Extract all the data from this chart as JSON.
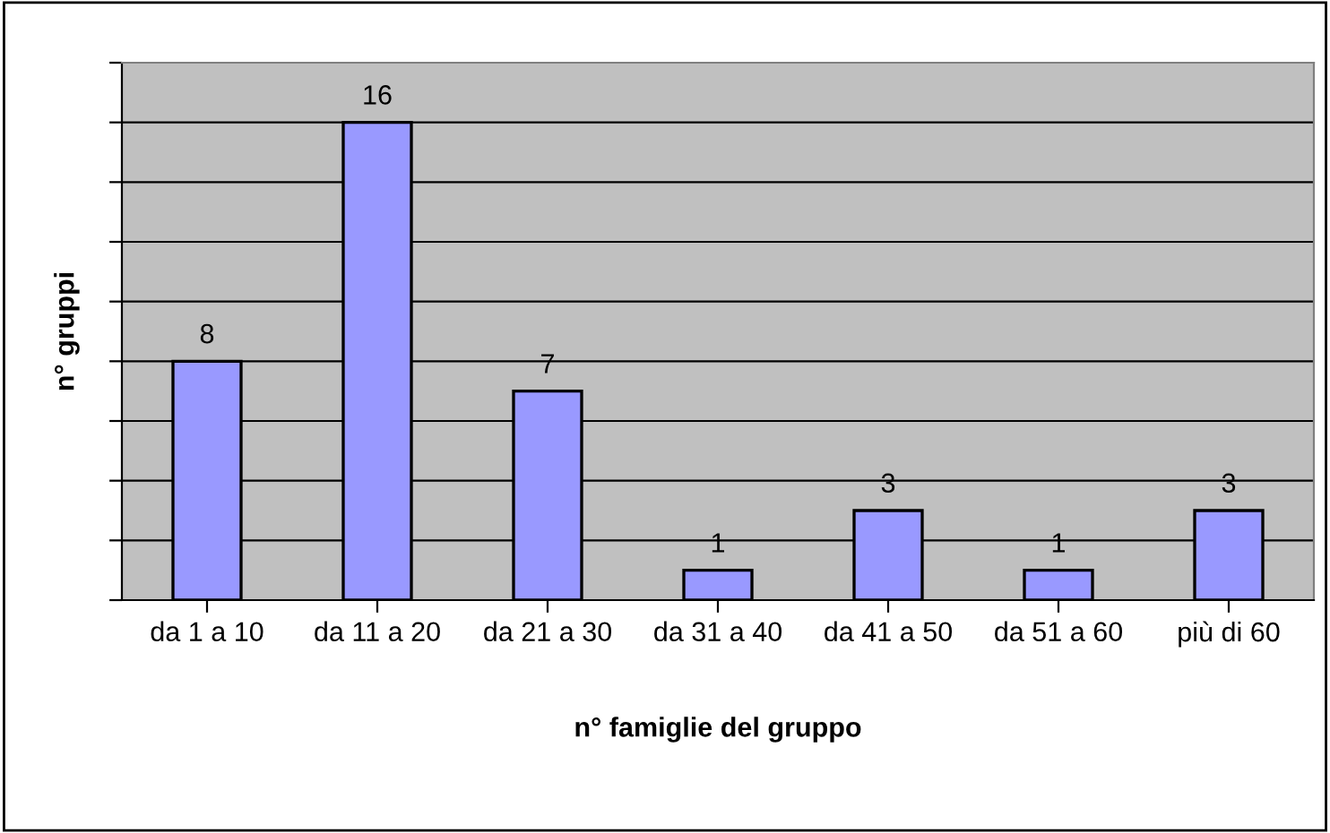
{
  "chart_data": {
    "type": "bar",
    "xlabel": "n° famiglie del gruppo",
    "ylabel": "n° gruppi",
    "categories": [
      "da 1 a 10",
      "da 11 a 20",
      "da 21 a 30",
      "da 31 a 40",
      "da 41 a 50",
      "da 51 a 60",
      "più di 60"
    ],
    "values": [
      8,
      16,
      7,
      1,
      3,
      1,
      3
    ],
    "color": "#9999ff",
    "ylim": [
      0,
      18
    ],
    "yticks": [
      {
        "value": 0,
        "label": null
      },
      {
        "value": 2,
        "label": null
      },
      {
        "value": 4,
        "label": null
      },
      {
        "value": 6,
        "label": null
      },
      {
        "value": 8,
        "label": null
      },
      {
        "value": 10,
        "label": null
      },
      {
        "value": 12,
        "label": null
      },
      {
        "value": 14,
        "label": null
      },
      {
        "value": 16,
        "label": null
      },
      {
        "value": 18,
        "label": null
      }
    ],
    "tick_labels": "x",
    "grid": "y",
    "data_labels": true,
    "legend": false
  }
}
